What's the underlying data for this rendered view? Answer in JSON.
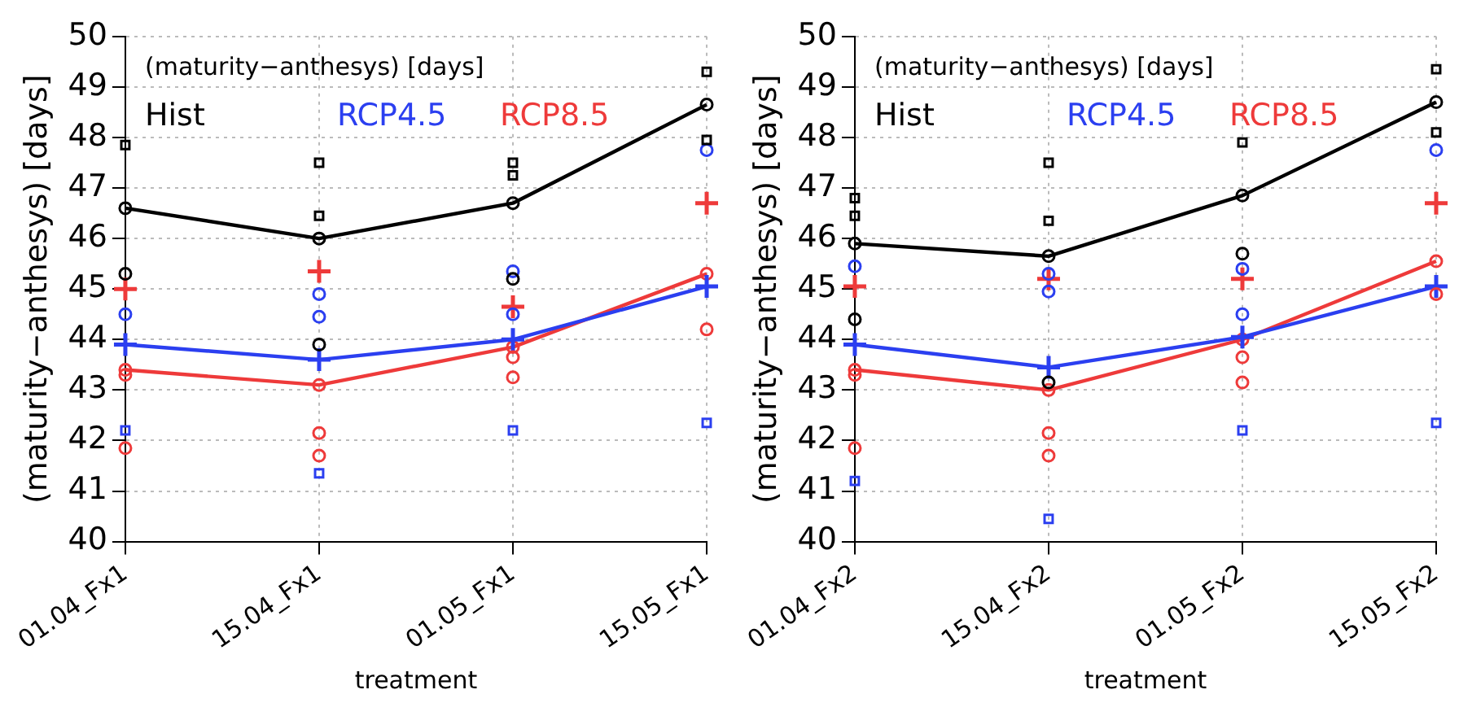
{
  "chart_data": [
    {
      "type": "line",
      "ylabel": "(maturity−anthesys) [days]",
      "xlabel": "treatment",
      "annotations": [
        "(maturity−anthesys) [days]"
      ],
      "categories": [
        "01.04_Fx1",
        "15.04_Fx1",
        "01.05_Fx1",
        "15.05_Fx1"
      ],
      "ylim": [
        40,
        50
      ],
      "yticks": [
        40,
        41,
        42,
        43,
        44,
        45,
        46,
        47,
        48,
        49,
        50
      ],
      "grid": true,
      "legend": "top left",
      "series": [
        {
          "name": "Hist",
          "color": "#000000",
          "marker": "circle",
          "values": [
            46.6,
            46.0,
            46.7,
            48.65
          ]
        },
        {
          "name": "RCP4.5",
          "color": "#2b3ff0",
          "marker": "cross",
          "values": [
            43.9,
            43.6,
            44.0,
            45.05
          ]
        },
        {
          "name": "RCP8.5",
          "color": "#ee3a3a",
          "marker": "circle",
          "values": [
            43.4,
            43.1,
            43.85,
            45.3
          ]
        },
        {
          "type": "scatter",
          "color": "#000000",
          "marker": "square",
          "x": [
            "01.04_Fx1",
            "15.04_Fx1",
            "15.04_Fx1",
            "01.05_Fx1",
            "01.05_Fx1",
            "15.05_Fx1",
            "15.05_Fx1"
          ],
          "values": [
            47.85,
            47.5,
            46.45,
            47.5,
            47.25,
            49.3,
            47.95
          ]
        },
        {
          "type": "scatter",
          "color": "#000000",
          "marker": "circle",
          "x": [
            "01.04_Fx1",
            "15.04_Fx1",
            "01.05_Fx1"
          ],
          "values": [
            45.3,
            43.9,
            45.2
          ]
        },
        {
          "type": "scatter",
          "color": "#2b3ff0",
          "marker": "circle",
          "x": [
            "01.04_Fx1",
            "15.04_Fx1",
            "15.04_Fx1",
            "01.05_Fx1",
            "01.05_Fx1",
            "15.05_Fx1"
          ],
          "values": [
            44.5,
            44.45,
            44.9,
            45.35,
            44.5,
            47.75
          ]
        },
        {
          "type": "scatter",
          "color": "#2b3ff0",
          "marker": "square",
          "x": [
            "01.04_Fx1",
            "15.04_Fx1",
            "01.05_Fx1",
            "15.05_Fx1"
          ],
          "values": [
            42.2,
            41.35,
            42.2,
            42.35
          ]
        },
        {
          "type": "scatter",
          "color": "#ee3a3a",
          "marker": "cross",
          "x": [
            "01.04_Fx1",
            "15.04_Fx1",
            "01.05_Fx1",
            "15.05_Fx1"
          ],
          "values": [
            45.0,
            45.35,
            44.65,
            46.7
          ]
        },
        {
          "type": "scatter",
          "color": "#ee3a3a",
          "marker": "circle",
          "x": [
            "01.04_Fx1",
            "01.04_Fx1",
            "15.04_Fx1",
            "15.04_Fx1",
            "01.05_Fx1",
            "01.05_Fx1",
            "15.05_Fx1"
          ],
          "values": [
            43.3,
            41.85,
            42.15,
            41.7,
            43.65,
            43.25,
            44.2
          ]
        }
      ]
    },
    {
      "type": "line",
      "ylabel": "(maturity−anthesys) [days]",
      "xlabel": "treatment",
      "annotations": [
        "(maturity−anthesys) [days]"
      ],
      "categories": [
        "01.04_Fx2",
        "15.04_Fx2",
        "01.05_Fx2",
        "15.05_Fx2"
      ],
      "ylim": [
        40,
        50
      ],
      "yticks": [
        40,
        41,
        42,
        43,
        44,
        45,
        46,
        47,
        48,
        49,
        50
      ],
      "grid": true,
      "legend": "top left",
      "series": [
        {
          "name": "Hist",
          "color": "#000000",
          "marker": "circle",
          "values": [
            45.9,
            45.65,
            46.85,
            48.7
          ]
        },
        {
          "name": "RCP4.5",
          "color": "#2b3ff0",
          "marker": "cross",
          "values": [
            43.9,
            43.45,
            44.05,
            45.05
          ]
        },
        {
          "name": "RCP8.5",
          "color": "#ee3a3a",
          "marker": "circle",
          "values": [
            43.4,
            43.0,
            44.0,
            45.55
          ]
        },
        {
          "type": "scatter",
          "color": "#000000",
          "marker": "square",
          "x": [
            "01.04_Fx2",
            "01.04_Fx2",
            "15.04_Fx2",
            "15.04_Fx2",
            "01.05_Fx2",
            "15.05_Fx2",
            "15.05_Fx2"
          ],
          "values": [
            46.45,
            46.8,
            47.5,
            46.35,
            47.9,
            49.35,
            48.1
          ]
        },
        {
          "type": "scatter",
          "color": "#000000",
          "marker": "circle",
          "x": [
            "01.04_Fx2",
            "15.04_Fx2",
            "01.05_Fx2"
          ],
          "values": [
            44.4,
            43.15,
            45.7
          ]
        },
        {
          "type": "scatter",
          "color": "#2b3ff0",
          "marker": "circle",
          "x": [
            "01.04_Fx2",
            "15.04_Fx2",
            "15.04_Fx2",
            "01.05_Fx2",
            "01.05_Fx2",
            "15.05_Fx2"
          ],
          "values": [
            45.45,
            45.3,
            44.95,
            45.4,
            44.5,
            47.75
          ]
        },
        {
          "type": "scatter",
          "color": "#2b3ff0",
          "marker": "square",
          "x": [
            "01.04_Fx2",
            "15.04_Fx2",
            "01.05_Fx2",
            "15.05_Fx2"
          ],
          "values": [
            41.2,
            40.45,
            42.2,
            42.35
          ]
        },
        {
          "type": "scatter",
          "color": "#ee3a3a",
          "marker": "cross",
          "x": [
            "01.04_Fx2",
            "15.04_Fx2",
            "01.05_Fx2",
            "15.05_Fx2"
          ],
          "values": [
            45.05,
            45.2,
            45.2,
            46.7
          ]
        },
        {
          "type": "scatter",
          "color": "#ee3a3a",
          "marker": "circle",
          "x": [
            "01.04_Fx2",
            "01.04_Fx2",
            "15.04_Fx2",
            "15.04_Fx2",
            "01.05_Fx2",
            "01.05_Fx2",
            "15.05_Fx2"
          ],
          "values": [
            43.3,
            41.85,
            42.15,
            41.7,
            43.65,
            43.15,
            44.9
          ]
        }
      ]
    }
  ]
}
